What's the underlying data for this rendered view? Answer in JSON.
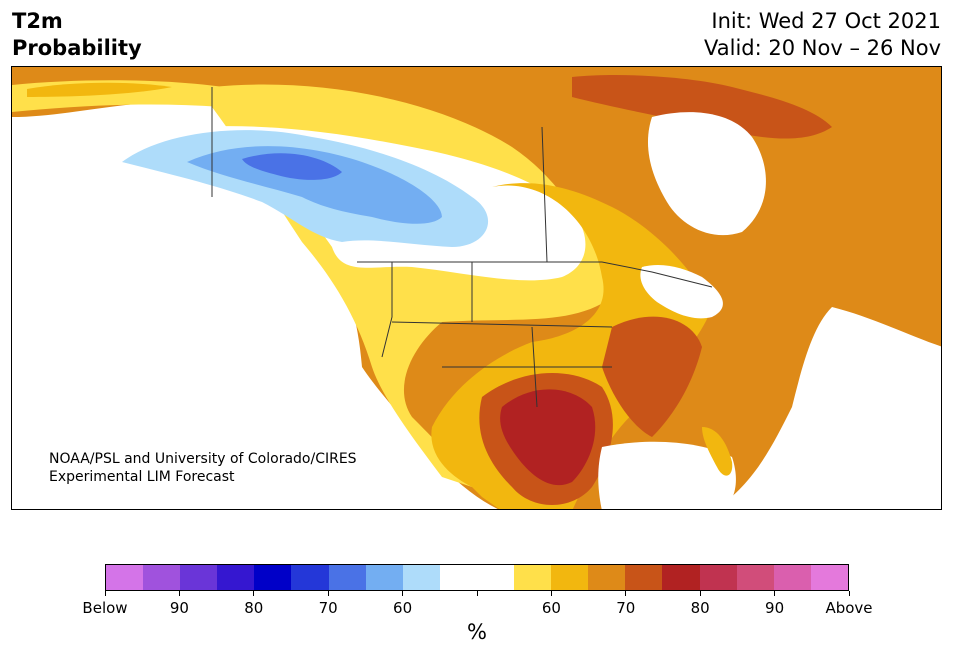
{
  "header": {
    "variable": "T2m",
    "product": "Probability",
    "init": "Init: Wed 27 Oct 2021",
    "valid": "Valid: 20 Nov – 26 Nov"
  },
  "credit": {
    "line1": "NOAA/PSL and University of Colorado/CIRES",
    "line2": "Experimental LIM Forecast"
  },
  "colorbar": {
    "colors": [
      "#d474e8",
      "#a052dd",
      "#6a35d8",
      "#3517d0",
      "#0000c8",
      "#2437d8",
      "#4a72e6",
      "#73aef2",
      "#aedcfa",
      "#ffffff",
      "#ffffff",
      "#ffe04a",
      "#f2b70f",
      "#de8a18",
      "#c85418",
      "#b12222",
      "#c03350",
      "#d14d7a",
      "#da5fae",
      "#e479dc"
    ],
    "labels": [
      "Below",
      "90",
      "80",
      "70",
      "60",
      "",
      "60",
      "70",
      "80",
      "90",
      "Above"
    ],
    "unit": "%"
  },
  "map": {
    "palette": {
      "above50": "#ffe04a",
      "above60": "#f2b70f",
      "above70": "#de8a18",
      "above80": "#c85418",
      "above90": "#b12222",
      "below50": "#aedcfa",
      "below60": "#73aef2",
      "below70": "#4a72e6"
    }
  }
}
